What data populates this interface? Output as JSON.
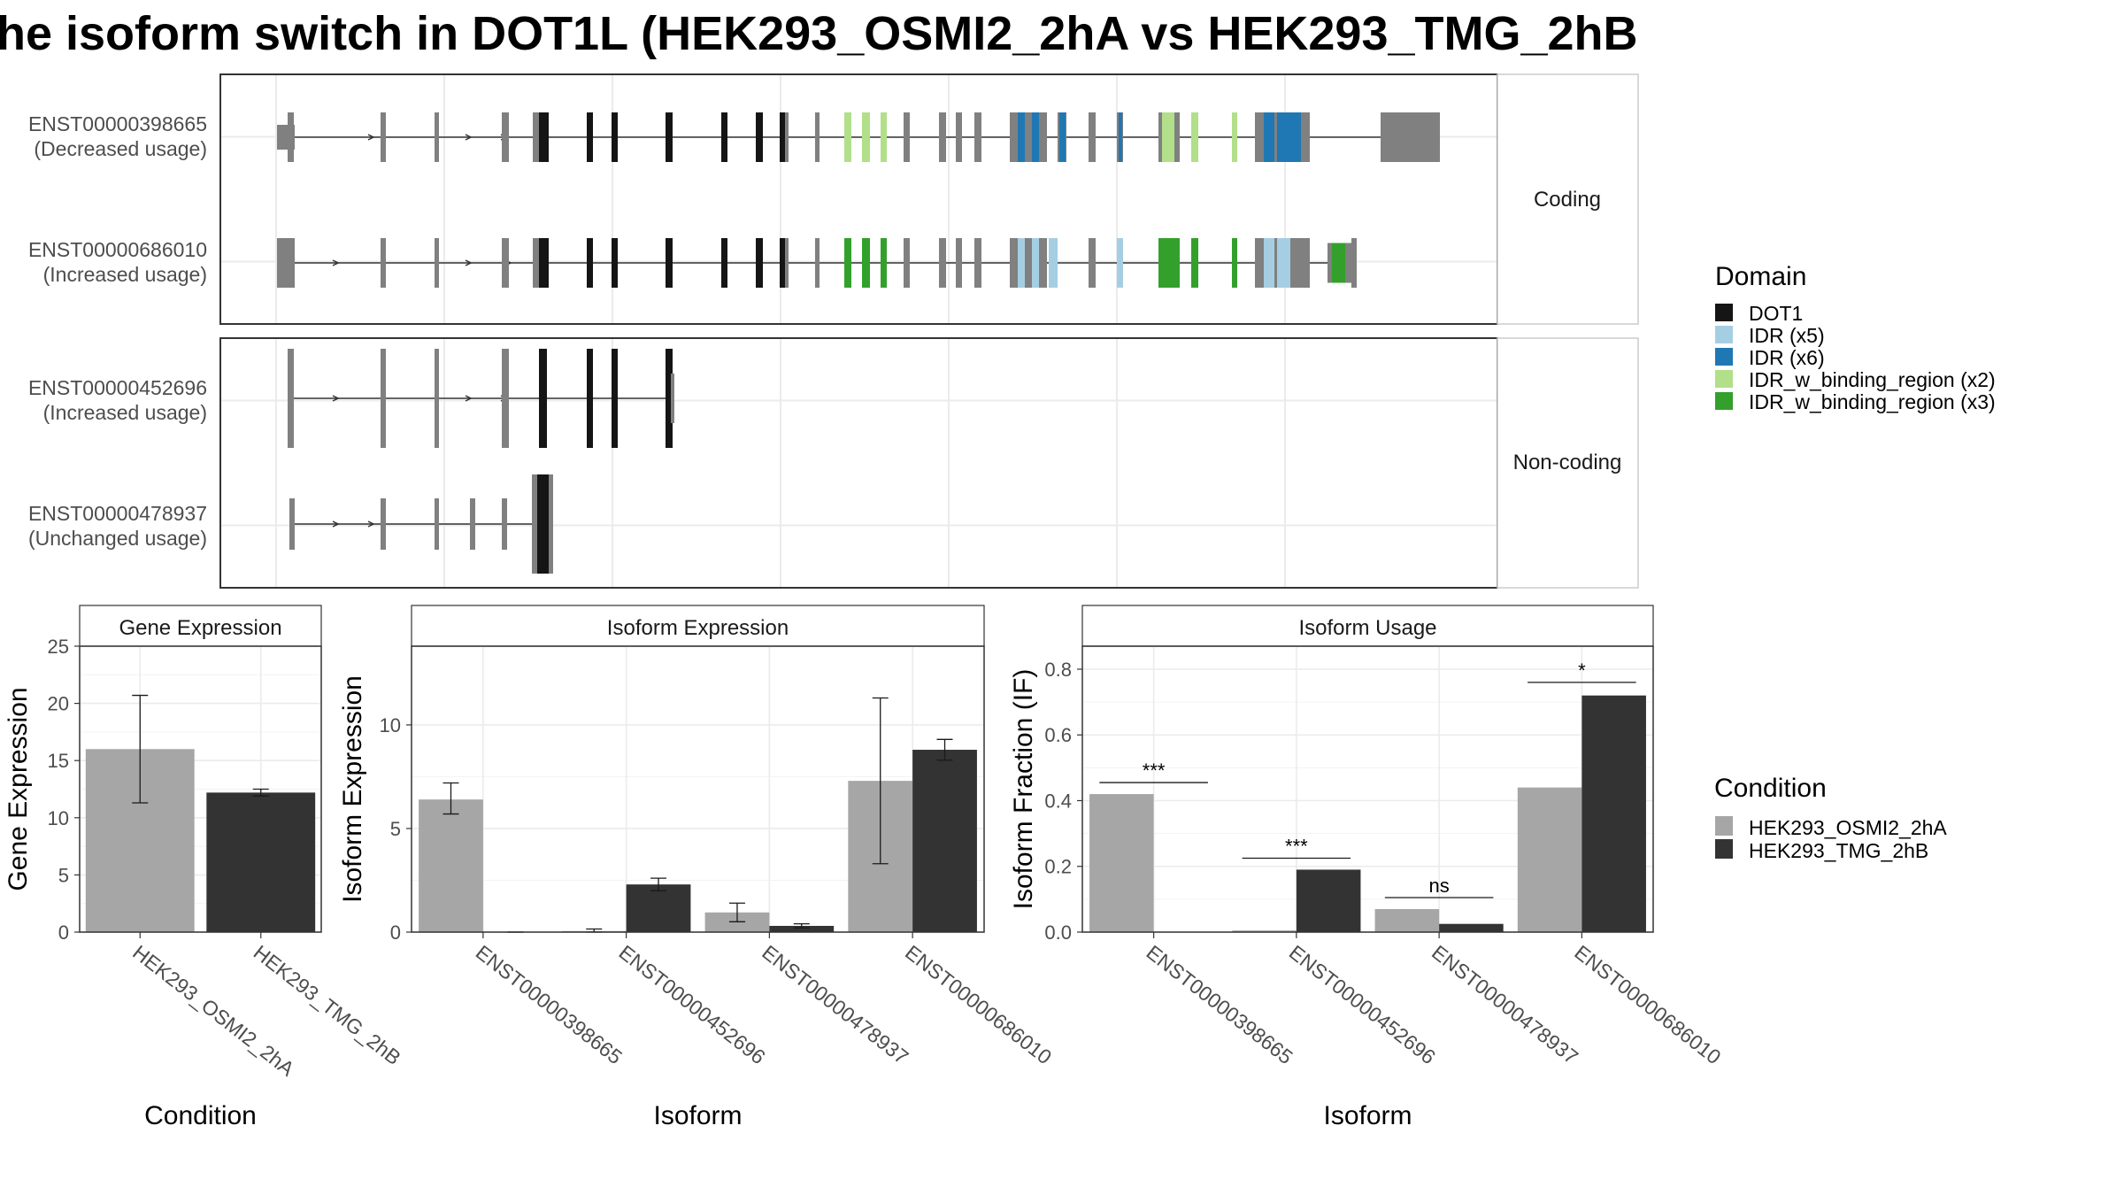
{
  "title": "he isoform switch in DOT1L (HEK293_OSMI2_2hA vs HEK293_TMG_2hB",
  "colors": {
    "dot1": "#151515",
    "idr_x5": "#a6cee3",
    "idr_x6": "#1f78b4",
    "idr_bind_x2": "#b2df8a",
    "idr_bind_x3": "#33a02c",
    "noncoding_exon": "#808080",
    "cond_a": "#a6a6a6",
    "cond_b": "#333333",
    "grid": "#ebebeb"
  },
  "structure": {
    "facets": [
      "Coding",
      "Non-coding"
    ],
    "transcripts": [
      {
        "id": "ENST00000398665",
        "usage": "(Decreased usage)",
        "group": "Coding"
      },
      {
        "id": "ENST00000686010",
        "usage": "(Increased usage)",
        "group": "Coding"
      },
      {
        "id": "ENST00000452696",
        "usage": "(Increased usage)",
        "group": "Non-coding"
      },
      {
        "id": "ENST00000478937",
        "usage": "(Unchanged usage)",
        "group": "Non-coding"
      }
    ]
  },
  "legend_domain": {
    "title": "Domain",
    "items": [
      {
        "label": "DOT1",
        "color": "#151515"
      },
      {
        "label": "IDR (x5)",
        "color": "#a6cee3"
      },
      {
        "label": "IDR (x6)",
        "color": "#1f78b4"
      },
      {
        "label": "IDR_w_binding_region (x2)",
        "color": "#b2df8a"
      },
      {
        "label": "IDR_w_binding_region (x3)",
        "color": "#33a02c"
      }
    ]
  },
  "legend_condition": {
    "title": "Condition",
    "items": [
      {
        "label": "HEK293_OSMI2_2hA",
        "color": "#a6a6a6"
      },
      {
        "label": "HEK293_TMG_2hB",
        "color": "#333333"
      }
    ]
  },
  "chart_data": [
    {
      "type": "bar",
      "title": "Gene Expression",
      "xlabel": "Condition",
      "ylabel": "Gene Expression",
      "ylim": [
        0,
        25
      ],
      "yticks": [
        0,
        5,
        10,
        15,
        20,
        25
      ],
      "categories": [
        "HEK293_OSMI2_2hA",
        "HEK293_TMG_2hB"
      ],
      "values": [
        16.0,
        12.2
      ],
      "errors": [
        [
          11.3,
          20.7
        ],
        [
          11.9,
          12.5
        ]
      ]
    },
    {
      "type": "bar",
      "title": "Isoform Expression",
      "xlabel": "Isoform",
      "ylabel": "Isoform Expression",
      "ylim": [
        0,
        13.8
      ],
      "yticks": [
        0,
        5,
        10
      ],
      "categories": [
        "ENST00000398665",
        "ENST00000452696",
        "ENST00000478937",
        "ENST00000686010"
      ],
      "series": [
        {
          "name": "HEK293_OSMI2_2hA",
          "values": [
            6.4,
            0.05,
            0.95,
            7.3
          ],
          "errors": [
            [
              5.7,
              7.2
            ],
            [
              0.0,
              0.15
            ],
            [
              0.5,
              1.4
            ],
            [
              3.3,
              11.3
            ]
          ]
        },
        {
          "name": "HEK293_TMG_2hB",
          "values": [
            0.0,
            2.3,
            0.3,
            8.8
          ],
          "errors": [
            [
              0.0,
              0.0
            ],
            [
              2.0,
              2.6
            ],
            [
              0.2,
              0.4
            ],
            [
              8.3,
              9.3
            ]
          ]
        }
      ]
    },
    {
      "type": "bar",
      "title": "Isoform Usage",
      "xlabel": "Isoform",
      "ylabel": "Isoform Fraction (IF)",
      "ylim": [
        0,
        0.87
      ],
      "yticks": [
        "0.0",
        "0.2",
        "0.4",
        "0.6",
        "0.8"
      ],
      "categories": [
        "ENST00000398665",
        "ENST00000452696",
        "ENST00000478937",
        "ENST00000686010"
      ],
      "series": [
        {
          "name": "HEK293_OSMI2_2hA",
          "values": [
            0.42,
            0.005,
            0.07,
            0.44
          ]
        },
        {
          "name": "HEK293_TMG_2hB",
          "values": [
            0.0,
            0.19,
            0.025,
            0.72
          ]
        }
      ],
      "significance": [
        "***",
        "***",
        "ns",
        "*"
      ],
      "significance_y": [
        0.455,
        0.225,
        0.105,
        0.76
      ]
    }
  ]
}
